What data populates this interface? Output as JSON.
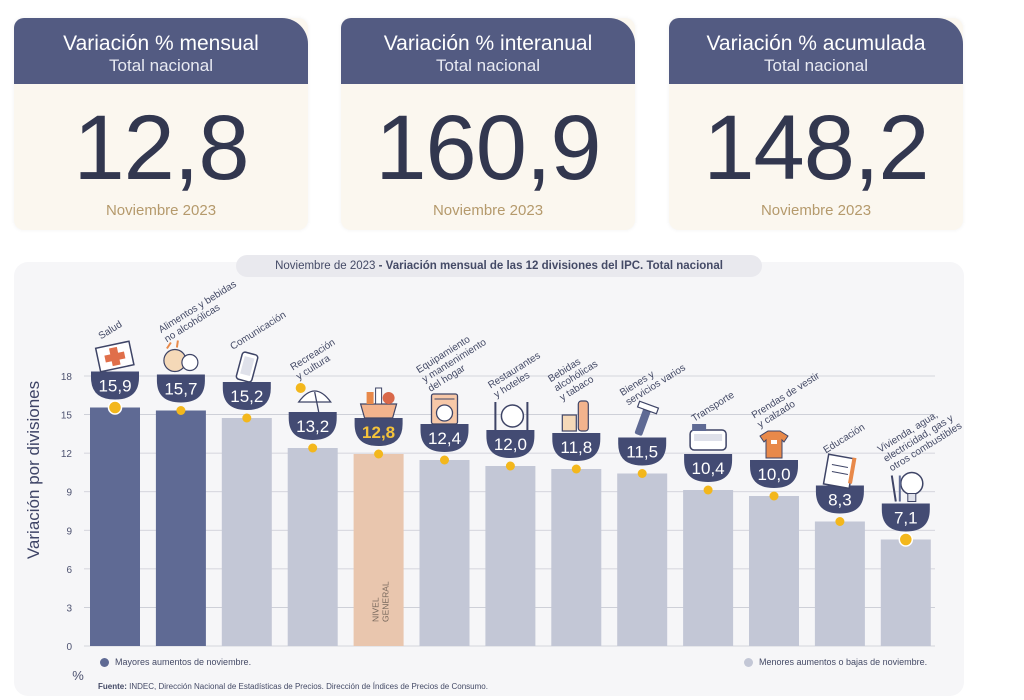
{
  "kpis": [
    {
      "title": "Variación % mensual",
      "subtitle": "Total nacional",
      "value": "12,8",
      "date": "Noviembre 2023"
    },
    {
      "title": "Variación % interanual",
      "subtitle": "Total nacional",
      "value": "160,9",
      "date": "Noviembre 2023"
    },
    {
      "title": "Variación % acumulada",
      "subtitle": "Total nacional",
      "value": "148,2",
      "date": "Noviembre 2023"
    }
  ],
  "chart_title": {
    "prefix": "Noviembre de 2023",
    "rest": " - Variación mensual de las 12 divisiones del IPC. Total nacional"
  },
  "legend": {
    "high": "Mayores aumentos de noviembre.",
    "low": "Menores aumentos o bajas de noviembre."
  },
  "source": {
    "label": "Fuente:",
    "text": " INDEC, Dirección Nacional de Estadísticas de Precios. Dirección de Índices de Precios de Consumo."
  },
  "colors": {
    "high": "#5f6a94",
    "low": "#c3c7d6",
    "general": "#e9c6ae",
    "badge": "#434b73",
    "marker": "#f3b71c",
    "general_text": "#f5c33a"
  },
  "chart_data": {
    "type": "bar",
    "ylabel": "Variación por divisiones",
    "unit": "%",
    "yticks": [
      "0",
      "3",
      "6",
      "9",
      "9",
      "12",
      "15",
      "18"
    ],
    "ylim": [
      0,
      18
    ],
    "grid": true,
    "legend_position": "bottom",
    "categories": [
      "Salud",
      "Alimentos y bebidas no alcohólicas",
      "Comunicación",
      "Recreación y cultura",
      "Nivel general",
      "Equipamiento y mantenimiento del hogar",
      "Restaurantes y hoteles",
      "Bebidas alcohólicas y tabaco",
      "Bienes y servicios varios",
      "Transporte",
      "Prendas de vestir y calzado",
      "Educación",
      "Vivienda, agua, electricidad, gas y otros combustibles"
    ],
    "values": [
      15.9,
      15.7,
      15.2,
      13.2,
      12.8,
      12.4,
      12.0,
      11.8,
      11.5,
      10.4,
      10.0,
      8.3,
      7.1
    ],
    "value_labels": [
      "15,9",
      "15,7",
      "15,2",
      "13,2",
      "12,8",
      "12,4",
      "12,0",
      "11,8",
      "11,5",
      "10,4",
      "10,0",
      "8,3",
      "7,1"
    ],
    "groups": [
      "high",
      "high",
      "low",
      "low",
      "general",
      "low",
      "low",
      "low",
      "low",
      "low",
      "low",
      "low",
      "low"
    ],
    "category_labels": [
      [
        "Salud"
      ],
      [
        "Alimentos y bebidas",
        "no alcohólicas"
      ],
      [
        "Comunicación"
      ],
      [
        "Recreación",
        "y cultura"
      ],
      [
        "NIVEL",
        "GENERAL"
      ],
      [
        "Equipamiento",
        "y mantenimiento",
        "del hogar"
      ],
      [
        "Restaurantes",
        "y hoteles"
      ],
      [
        "Bebidas",
        "alcohólicas",
        "y tabaco"
      ],
      [
        "Bienes y",
        "servicios varios"
      ],
      [
        "Transporte"
      ],
      [
        "Prendas de vestir",
        "y calzado"
      ],
      [
        "Educación"
      ],
      [
        "Vivienda, agua,",
        "electricidad, gas y",
        "otros combustibles"
      ]
    ],
    "icons": [
      "medical-kit-icon",
      "food-icon",
      "phone-icon",
      "beach-umbrella-icon",
      "shopping-basket-icon",
      "washing-machine-icon",
      "cutlery-icon",
      "bottle-icon",
      "razor-icon",
      "bus-icon",
      "clothes-icon",
      "notebook-icon",
      "bulb-tools-icon"
    ]
  }
}
